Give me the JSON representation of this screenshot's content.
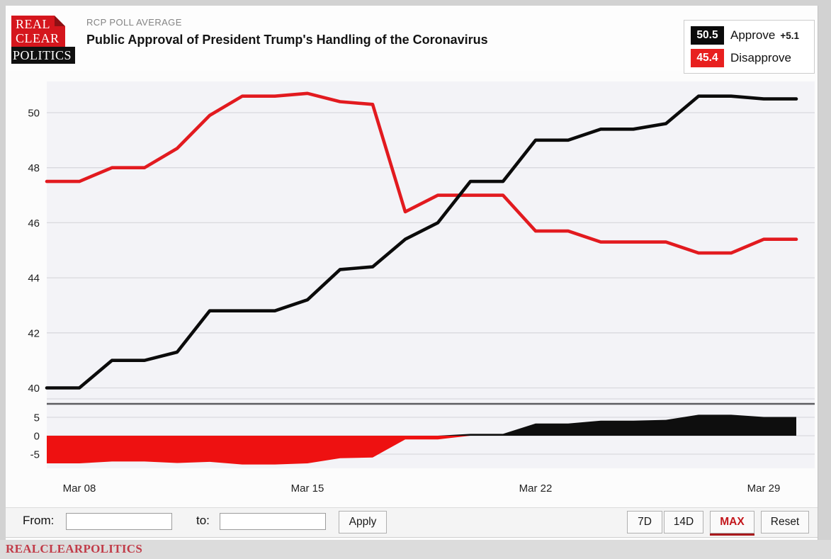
{
  "header": {
    "kicker": "RCP POLL AVERAGE",
    "title": "Public Approval of President Trump's Handling of the Coronavirus",
    "logo": {
      "line1": "REAL",
      "line2": "CLEAR",
      "line3": "POLITICS"
    }
  },
  "legend": {
    "approve": {
      "value": "50.5",
      "label": "Approve",
      "spread": "+5.1",
      "color": "#0b0b0b"
    },
    "disapprove": {
      "value": "45.4",
      "label": "Disapprove",
      "color": "#e8201f"
    }
  },
  "controls": {
    "from_label": "From:",
    "to_label": "to:",
    "from_value": "",
    "to_value": "",
    "apply_label": "Apply",
    "range_buttons": [
      {
        "label": "7D",
        "active": false
      },
      {
        "label": "14D",
        "active": false
      },
      {
        "label": "MAX",
        "active": true
      },
      {
        "label": "Reset",
        "active": false
      }
    ]
  },
  "footer": {
    "brand": "REALCLEARPOLITICS"
  },
  "chart_data": {
    "type": "line",
    "title": "Public Approval of President Trump's Handling of the Coronavirus",
    "x": [
      "Mar 07",
      "Mar 08",
      "Mar 09",
      "Mar 10",
      "Mar 11",
      "Mar 12",
      "Mar 13",
      "Mar 14",
      "Mar 15",
      "Mar 16",
      "Mar 17",
      "Mar 18",
      "Mar 19",
      "Mar 20",
      "Mar 21",
      "Mar 22",
      "Mar 23",
      "Mar 24",
      "Mar 25",
      "Mar 26",
      "Mar 27",
      "Mar 28",
      "Mar 29",
      "Mar 30"
    ],
    "x_tick_labels": [
      {
        "label": "Mar 08",
        "index": 1
      },
      {
        "label": "Mar 15",
        "index": 8
      },
      {
        "label": "Mar 22",
        "index": 15
      },
      {
        "label": "Mar 29",
        "index": 22
      }
    ],
    "main_axis": {
      "ticks": [
        50,
        48,
        46,
        44,
        42,
        40
      ],
      "range": [
        39.7,
        51.1
      ]
    },
    "spread_axis": {
      "ticks": [
        5,
        0,
        -5
      ],
      "range": [
        -8.7,
        6.3
      ]
    },
    "series": [
      {
        "name": "Approve",
        "color": "#0b0b0b",
        "values": [
          40.0,
          40.0,
          41.0,
          41.0,
          41.3,
          42.8,
          42.8,
          42.8,
          43.2,
          44.3,
          44.4,
          45.4,
          46.0,
          47.5,
          47.5,
          49.0,
          49.0,
          49.4,
          49.4,
          49.6,
          50.6,
          50.6,
          50.5,
          50.5
        ]
      },
      {
        "name": "Disapprove",
        "color": "#e21a1f",
        "values": [
          47.5,
          47.5,
          48.0,
          48.0,
          48.7,
          49.9,
          50.6,
          50.6,
          50.7,
          50.4,
          50.3,
          46.4,
          47.0,
          47.0,
          47.0,
          45.7,
          45.7,
          45.3,
          45.3,
          45.3,
          44.9,
          44.9,
          45.4,
          45.4
        ]
      }
    ],
    "spread": {
      "name": "Approve minus Disapprove",
      "positive_color": "#0e0e0e",
      "negative_color": "#ee1111",
      "values": [
        -7.5,
        -7.5,
        -7.0,
        -7.0,
        -7.4,
        -7.1,
        -7.8,
        -7.8,
        -7.5,
        -6.1,
        -5.9,
        -1.0,
        -1.0,
        0.5,
        0.5,
        3.3,
        3.3,
        4.1,
        4.1,
        4.3,
        5.7,
        5.7,
        5.1,
        5.1
      ]
    },
    "grid": true,
    "legend_position": "top-right"
  }
}
